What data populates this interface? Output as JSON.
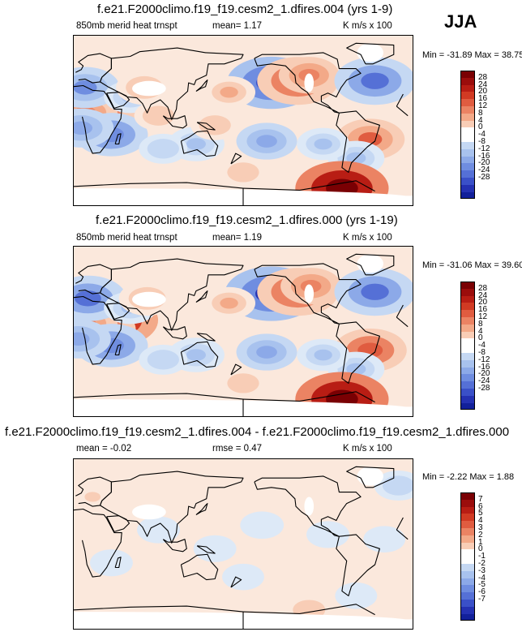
{
  "season": "JJA",
  "colors": {
    "palette_pos": [
      "#fbe8dc",
      "#f8cdb6",
      "#f3a988",
      "#eb8363",
      "#e05c40",
      "#d13a23",
      "#b81d14",
      "#9b0d0c",
      "#7a0003"
    ],
    "palette_neg": [
      "#dde9f7",
      "#c5d8f3",
      "#a8c2ee",
      "#8ca9e8",
      "#6f8de0",
      "#5570d6",
      "#3a50c8",
      "#2431b2",
      "#12209a"
    ],
    "white": "#ffffff",
    "land_outline": "#000000"
  },
  "panels": [
    {
      "title": "f.e21.F2000climo.f19_f19.cesm2_1.dfires.004 (yrs 1-9)",
      "left_label": "850mb merid heat trnspt",
      "center_label": "mean=  1.17",
      "right_label": "K m/s x 100",
      "minmax": "Min = -31.89 Max =  38.75",
      "colorbar_labels": [
        "28",
        "24",
        "20",
        "16",
        "12",
        "8",
        "4",
        "0",
        "-4",
        "-8",
        "-12",
        "-16",
        "-20",
        "-24",
        "-28"
      ]
    },
    {
      "title": "f.e21.F2000climo.f19_f19.cesm2_1.dfires.000 (yrs 1-19)",
      "left_label": "850mb merid heat trnspt",
      "center_label": "mean=  1.19",
      "right_label": "K m/s x 100",
      "minmax": "Min = -31.06 Max =  39.60",
      "colorbar_labels": [
        "28",
        "24",
        "20",
        "16",
        "12",
        "8",
        "4",
        "0",
        "-4",
        "-8",
        "-12",
        "-16",
        "-20",
        "-24",
        "-28"
      ]
    },
    {
      "title": "f.e21.F2000climo.f19_f19.cesm2_1.dfires.004 - f.e21.F2000climo.f19_f19.cesm2_1.dfires.000",
      "left_label": "mean =  -0.02",
      "center_label": "rmse =  0.47",
      "right_label": "K m/s x 100",
      "minmax": "Min =  -2.22 Max =  1.88",
      "colorbar_labels": [
        "7",
        "6",
        "5",
        "4",
        "3",
        "2",
        "1",
        "0",
        "-1",
        "-2",
        "-3",
        "-4",
        "-5",
        "-6",
        "-7"
      ]
    }
  ],
  "chart_data": [
    {
      "type": "heatmap",
      "title": "f.e21.F2000climo.f19_f19.cesm2_1.dfires.004 (yrs 1-9)",
      "variable": "850mb merid heat trnspt",
      "units": "K m/s x 100",
      "mean": 1.17,
      "min": -31.89,
      "max": 38.75,
      "levels": [
        -28,
        -24,
        -20,
        -16,
        -12,
        -8,
        -4,
        0,
        4,
        8,
        12,
        16,
        20,
        24,
        28
      ],
      "features": [
        {
          "lon": 40,
          "lat": 12,
          "value": 32
        },
        {
          "lon": 25,
          "lat": 2,
          "value": 20
        },
        {
          "lon": 12,
          "lat": 8,
          "value": 14
        },
        {
          "lon": 40,
          "lat": -15,
          "value": -18
        },
        {
          "lon": 8,
          "lat": -8,
          "value": -14
        },
        {
          "lon": 12,
          "lat": 35,
          "value": -16
        },
        {
          "lon": 60,
          "lat": 25,
          "value": -8
        },
        {
          "lon": 75,
          "lat": 35,
          "value": 10
        },
        {
          "lon": 90,
          "lat": 5,
          "value": 6
        },
        {
          "lon": 210,
          "lat": 40,
          "value": -26
        },
        {
          "lon": 238,
          "lat": 42,
          "value": 22
        },
        {
          "lon": 250,
          "lat": 48,
          "value": 12
        },
        {
          "lon": 320,
          "lat": 42,
          "value": -22
        },
        {
          "lon": 315,
          "lat": -20,
          "value": 16
        },
        {
          "lon": 300,
          "lat": -40,
          "value": -10
        },
        {
          "lon": 205,
          "lat": -22,
          "value": -12
        },
        {
          "lon": 130,
          "lat": -25,
          "value": -10
        },
        {
          "lon": 95,
          "lat": -30,
          "value": -6
        },
        {
          "lon": 265,
          "lat": -25,
          "value": -8
        },
        {
          "lon": 150,
          "lat": -5,
          "value": 6
        },
        {
          "lon": 165,
          "lat": 30,
          "value": 8
        },
        {
          "lon": 180,
          "lat": -55,
          "value": 6
        },
        {
          "lon": 285,
          "lat": -72,
          "value": 36
        }
      ]
    },
    {
      "type": "heatmap",
      "title": "f.e21.F2000climo.f19_f19.cesm2_1.dfires.000 (yrs 1-19)",
      "variable": "850mb merid heat trnspt",
      "units": "K m/s x 100",
      "mean": 1.19,
      "min": -31.06,
      "max": 39.6,
      "levels": [
        -28,
        -24,
        -20,
        -16,
        -12,
        -8,
        -4,
        0,
        4,
        8,
        12,
        16,
        20,
        24,
        28
      ],
      "features": [
        {
          "lon": 40,
          "lat": 12,
          "value": 34
        },
        {
          "lon": 25,
          "lat": 2,
          "value": 20
        },
        {
          "lon": 12,
          "lat": 8,
          "value": 14
        },
        {
          "lon": 40,
          "lat": -15,
          "value": -18
        },
        {
          "lon": 5,
          "lat": -8,
          "value": -14
        },
        {
          "lon": 15,
          "lat": 35,
          "value": -20
        },
        {
          "lon": 60,
          "lat": 25,
          "value": -8
        },
        {
          "lon": 78,
          "lat": 35,
          "value": 10
        },
        {
          "lon": 210,
          "lat": 40,
          "value": -28
        },
        {
          "lon": 238,
          "lat": 42,
          "value": 22
        },
        {
          "lon": 252,
          "lat": 48,
          "value": 12
        },
        {
          "lon": 320,
          "lat": 42,
          "value": -22
        },
        {
          "lon": 315,
          "lat": -20,
          "value": 18
        },
        {
          "lon": 300,
          "lat": -40,
          "value": -10
        },
        {
          "lon": 205,
          "lat": -22,
          "value": -12
        },
        {
          "lon": 130,
          "lat": -25,
          "value": -10
        },
        {
          "lon": 95,
          "lat": -30,
          "value": -6
        },
        {
          "lon": 265,
          "lat": -25,
          "value": -8
        },
        {
          "lon": 165,
          "lat": 30,
          "value": 8
        },
        {
          "lon": 180,
          "lat": -55,
          "value": 6
        },
        {
          "lon": 285,
          "lat": -72,
          "value": 38
        }
      ]
    },
    {
      "type": "heatmap",
      "title": "f.e21.F2000climo.f19_f19.cesm2_1.dfires.004 - f.e21.F2000climo.f19_f19.cesm2_1.dfires.000",
      "units": "K m/s x 100",
      "mean": -0.02,
      "rmse": 0.47,
      "min": -2.22,
      "max": 1.88,
      "levels": [
        -7,
        -6,
        -5,
        -4,
        -3,
        -2,
        -1,
        0,
        1,
        2,
        3,
        4,
        5,
        6,
        7
      ],
      "features": [
        {
          "lon": 20,
          "lat": 50,
          "value": 1.2
        },
        {
          "lon": 60,
          "lat": 40,
          "value": 0.8
        },
        {
          "lon": 90,
          "lat": 15,
          "value": -0.8
        },
        {
          "lon": 160,
          "lat": 40,
          "value": 0.9
        },
        {
          "lon": 200,
          "lat": 20,
          "value": -0.9
        },
        {
          "lon": 230,
          "lat": 45,
          "value": 0.9
        },
        {
          "lon": 270,
          "lat": 10,
          "value": -0.8
        },
        {
          "lon": 300,
          "lat": 35,
          "value": 0.8
        },
        {
          "lon": 330,
          "lat": 5,
          "value": -0.7
        },
        {
          "lon": 40,
          "lat": -20,
          "value": -0.8
        },
        {
          "lon": 110,
          "lat": -30,
          "value": 0.8
        },
        {
          "lon": 180,
          "lat": -35,
          "value": -0.7
        },
        {
          "lon": 240,
          "lat": -40,
          "value": 0.9
        },
        {
          "lon": 300,
          "lat": -55,
          "value": -0.7
        },
        {
          "lon": 0,
          "lat": -55,
          "value": 0.6
        },
        {
          "lon": 150,
          "lat": -5,
          "value": -0.8
        },
        {
          "lon": 250,
          "lat": -70,
          "value": 1.6
        },
        {
          "lon": 345,
          "lat": 62,
          "value": -1.5
        }
      ]
    }
  ]
}
